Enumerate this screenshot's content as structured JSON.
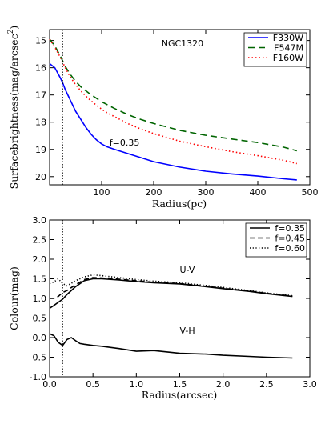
{
  "chart_data": [
    {
      "type": "line",
      "xlabel": "Radius(pc)",
      "ylabel": "Surfacebrightness(mag/arcsec",
      "ylabel_sup": "2",
      "ylabel_close": ")",
      "xlim": [
        0,
        500
      ],
      "ylim": [
        20.3,
        14.6
      ],
      "y_inverted": true,
      "xticks": [
        100,
        200,
        300,
        400,
        500
      ],
      "yticks": [
        15,
        16,
        17,
        18,
        19,
        20
      ],
      "legend": "top-right",
      "vline_x": 25,
      "annotations": [
        {
          "text": "NGC1320",
          "x": 215,
          "y": 15.1
        },
        {
          "text": "f=0.35",
          "x": 115,
          "y": 18.75
        }
      ],
      "series": [
        {
          "name": "F330W",
          "color": "#0000ff",
          "dash": "solid",
          "x": [
            0,
            10,
            20,
            25,
            30,
            40,
            50,
            60,
            70,
            80,
            90,
            100,
            110,
            125,
            150,
            175,
            200,
            250,
            300,
            350,
            400,
            450,
            475
          ],
          "y": [
            15.85,
            16.0,
            16.35,
            16.55,
            16.8,
            17.2,
            17.6,
            17.9,
            18.2,
            18.45,
            18.65,
            18.8,
            18.9,
            19.0,
            19.15,
            19.3,
            19.45,
            19.65,
            19.8,
            19.9,
            19.98,
            20.08,
            20.12
          ]
        },
        {
          "name": "F547M",
          "color": "#006400",
          "dash": "8,5",
          "x": [
            0,
            10,
            20,
            25,
            30,
            40,
            50,
            60,
            70,
            80,
            90,
            100,
            110,
            125,
            150,
            175,
            200,
            250,
            300,
            350,
            400,
            450,
            475
          ],
          "y": [
            14.95,
            15.2,
            15.55,
            15.75,
            15.95,
            16.25,
            16.5,
            16.7,
            16.85,
            17.0,
            17.12,
            17.25,
            17.35,
            17.5,
            17.72,
            17.9,
            18.05,
            18.3,
            18.48,
            18.62,
            18.75,
            18.92,
            19.05
          ]
        },
        {
          "name": "F160W",
          "color": "#ff0000",
          "dash": "1.5,3",
          "x": [
            0,
            10,
            20,
            25,
            30,
            40,
            50,
            60,
            70,
            80,
            90,
            100,
            110,
            125,
            150,
            175,
            200,
            250,
            300,
            350,
            400,
            450,
            475
          ],
          "y": [
            14.95,
            15.25,
            15.6,
            15.8,
            16.0,
            16.35,
            16.62,
            16.85,
            17.05,
            17.22,
            17.38,
            17.52,
            17.65,
            17.8,
            18.05,
            18.25,
            18.42,
            18.7,
            18.9,
            19.08,
            19.23,
            19.4,
            19.52
          ]
        }
      ]
    },
    {
      "type": "line",
      "xlabel": "Radius(arcsec)",
      "ylabel": "Colour(mag)",
      "xlim": [
        0,
        3.0
      ],
      "ylim": [
        -1.0,
        3.0
      ],
      "xticks": [
        0.0,
        0.5,
        1.0,
        1.5,
        2.0,
        2.5,
        3.0
      ],
      "yticks": [
        -1.0,
        -0.5,
        0.0,
        0.5,
        1.0,
        1.5,
        2.0,
        2.5,
        3.0
      ],
      "legend": "top-right",
      "vline_x": 0.15,
      "annotations": [
        {
          "text": "U-V",
          "x": 1.5,
          "y": 1.73
        },
        {
          "text": "V-H",
          "x": 1.5,
          "y": 0.18
        }
      ],
      "series": [
        {
          "name": "f=0.35",
          "color": "#000000",
          "dash": "solid",
          "x": [
            0.0,
            0.05,
            0.1,
            0.15,
            0.2,
            0.3,
            0.4,
            0.5,
            0.6,
            0.8,
            1.0,
            1.2,
            1.5,
            1.8,
            2.0,
            2.3,
            2.5,
            2.8
          ],
          "y": [
            0.75,
            0.82,
            0.9,
            0.98,
            1.1,
            1.3,
            1.45,
            1.5,
            1.5,
            1.47,
            1.43,
            1.4,
            1.37,
            1.3,
            1.25,
            1.18,
            1.12,
            1.05
          ]
        },
        {
          "name": "f=0.45",
          "color": "#000000",
          "dash": "6,4",
          "x": [
            0.0,
            0.05,
            0.1,
            0.15,
            0.2,
            0.3,
            0.4,
            0.5,
            0.6,
            0.8,
            1.0,
            1.2,
            1.5,
            1.8,
            2.0,
            2.3,
            2.5,
            2.8
          ],
          "y": [
            1.0,
            1.0,
            1.05,
            1.15,
            1.2,
            1.35,
            1.48,
            1.53,
            1.52,
            1.49,
            1.45,
            1.41,
            1.38,
            1.31,
            1.26,
            1.19,
            1.13,
            1.06
          ]
        },
        {
          "name": "f=0.60",
          "color": "#000000",
          "dash": "1.2,2.5",
          "x": [
            0.0,
            0.05,
            0.1,
            0.15,
            0.2,
            0.3,
            0.4,
            0.5,
            0.6,
            0.8,
            1.0,
            1.2,
            1.5,
            1.8,
            2.0,
            2.3,
            2.5,
            2.8
          ],
          "y": [
            1.38,
            1.42,
            1.5,
            1.38,
            1.32,
            1.45,
            1.55,
            1.6,
            1.58,
            1.53,
            1.48,
            1.44,
            1.4,
            1.33,
            1.28,
            1.2,
            1.14,
            1.07
          ]
        },
        {
          "name": "",
          "color": "#000000",
          "dash": "solid",
          "x": [
            0.0,
            0.05,
            0.1,
            0.15,
            0.2,
            0.25,
            0.3,
            0.35,
            0.4,
            0.5,
            0.6,
            0.8,
            1.0,
            1.2,
            1.5,
            1.8,
            2.0,
            2.3,
            2.5,
            2.8
          ],
          "y": [
            0.1,
            0.05,
            -0.12,
            -0.2,
            -0.05,
            0.0,
            -0.08,
            -0.15,
            -0.17,
            -0.2,
            -0.22,
            -0.28,
            -0.35,
            -0.33,
            -0.4,
            -0.42,
            -0.45,
            -0.48,
            -0.5,
            -0.52
          ]
        }
      ]
    }
  ]
}
